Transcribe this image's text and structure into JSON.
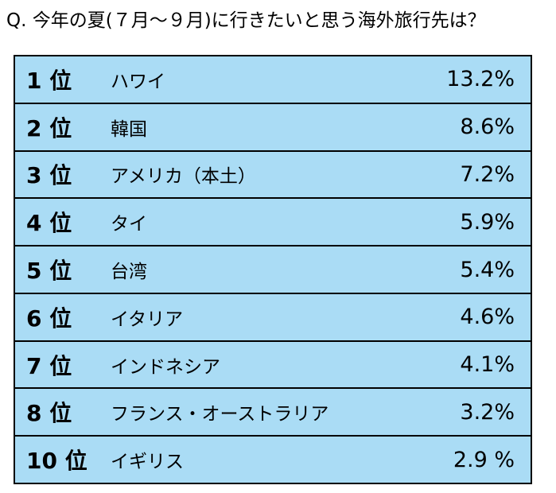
{
  "question": "Q. 今年の夏(７月〜９月)に行きたいと思う海外旅行先は？",
  "colors": {
    "row_background": "#aadcf5",
    "border": "#000000"
  },
  "rows": [
    {
      "rank": "1 位",
      "country": "ハワイ",
      "percent": "13.2%"
    },
    {
      "rank": "2 位",
      "country": "韓国",
      "percent": "8.6%"
    },
    {
      "rank": "3 位",
      "country": "アメリカ（本土）",
      "percent": "7.2%"
    },
    {
      "rank": "4 位",
      "country": "タイ",
      "percent": "5.9%"
    },
    {
      "rank": "5 位",
      "country": "台湾",
      "percent": "5.4%"
    },
    {
      "rank": "6 位",
      "country": "イタリア",
      "percent": "4.6%"
    },
    {
      "rank": "7 位",
      "country": "インドネシア",
      "percent": "4.1%"
    },
    {
      "rank": "8 位",
      "country": "フランス・オーストラリア",
      "percent": "3.2%"
    },
    {
      "rank": "10 位",
      "country": "イギリス",
      "percent": "2.9 %"
    }
  ]
}
